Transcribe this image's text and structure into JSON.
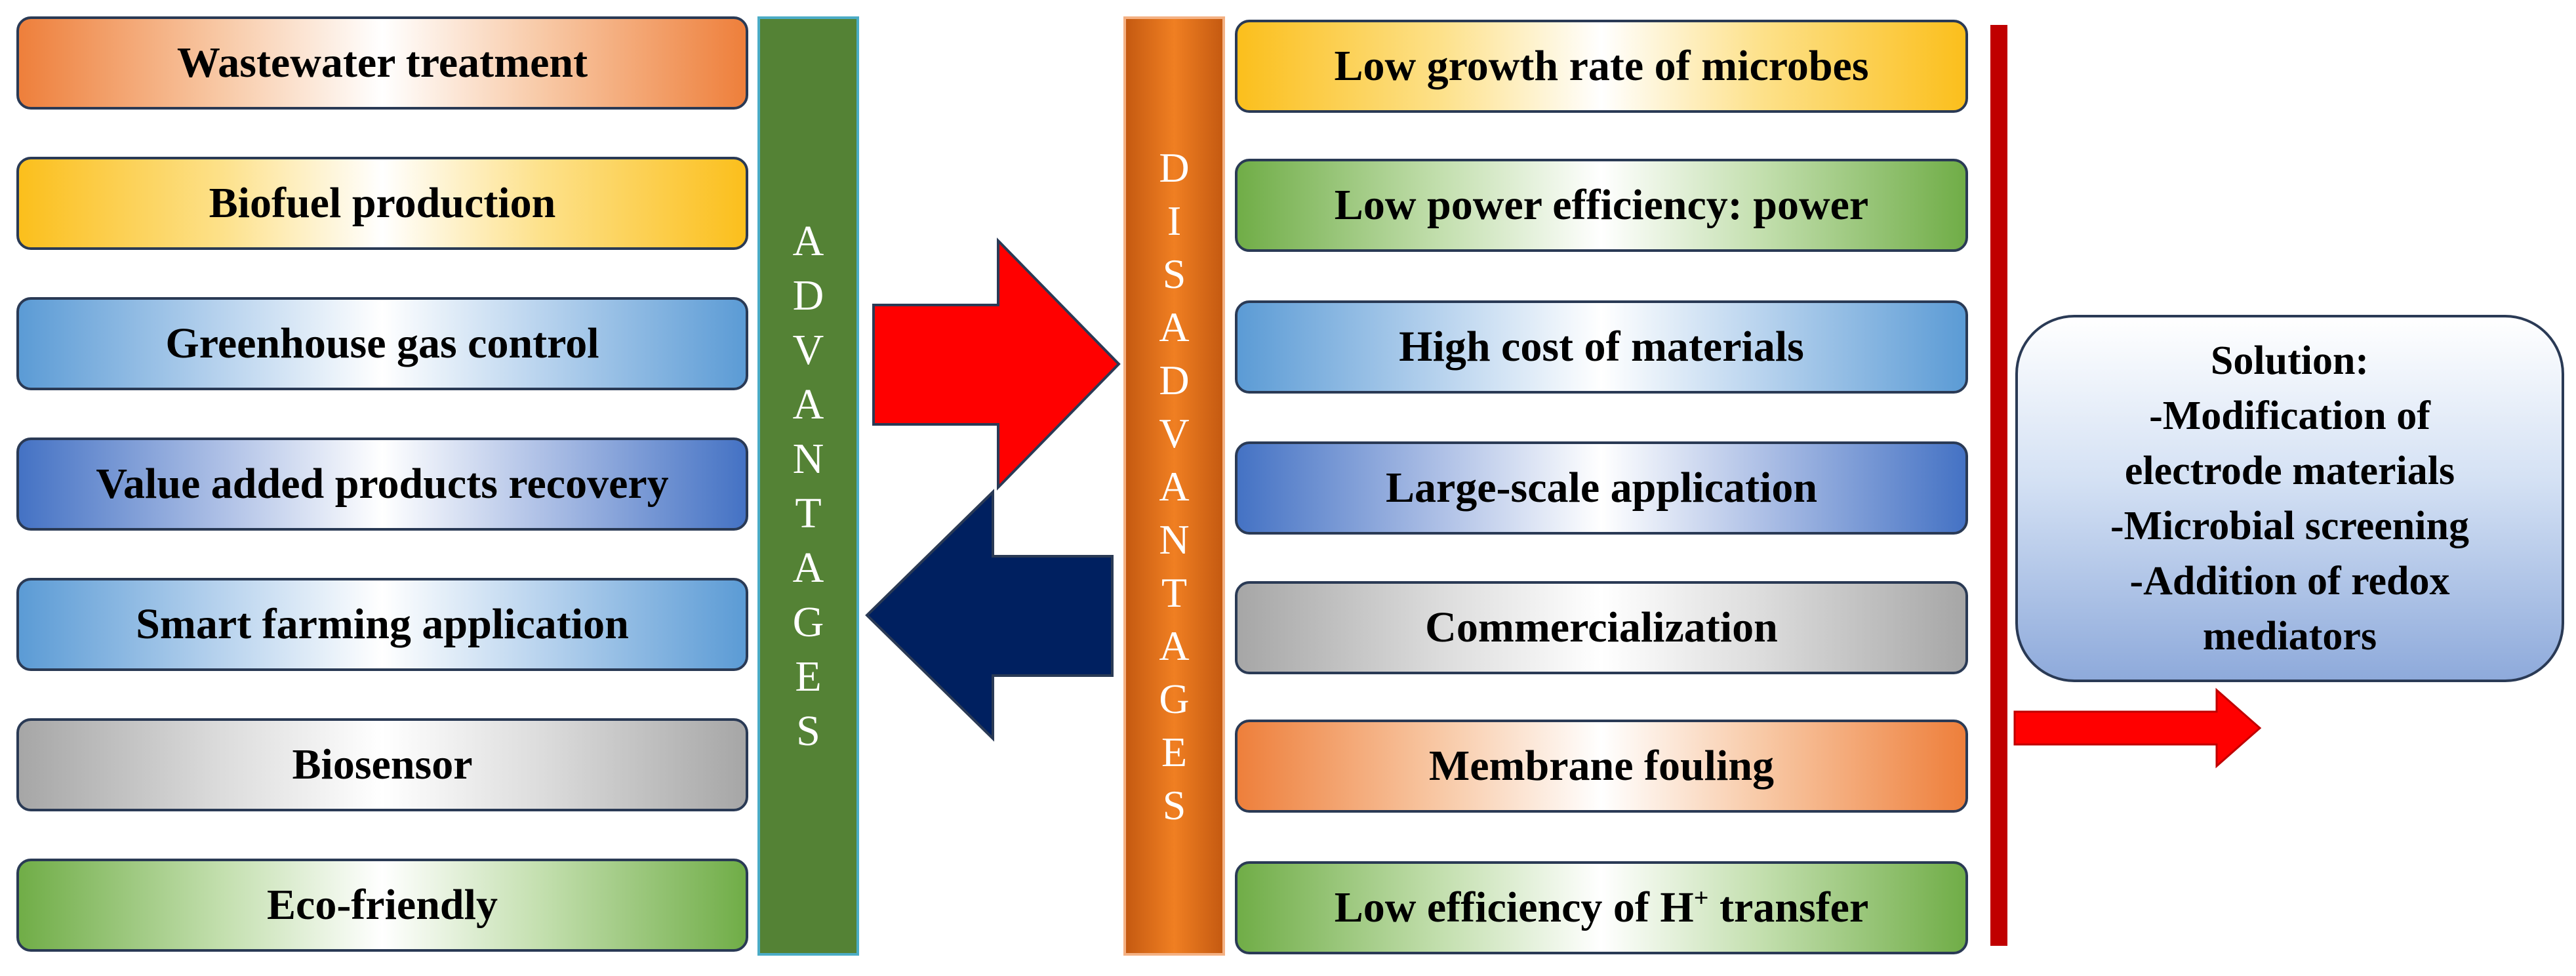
{
  "advantages": {
    "bar_letters": [
      "A",
      "D",
      "V",
      "A",
      "N",
      "T",
      "A",
      "G",
      "E",
      "S"
    ],
    "items": [
      {
        "label": "Wastewater treatment",
        "color": "#ee7f3b"
      },
      {
        "label": "Biofuel production",
        "color": "#fbbf1c"
      },
      {
        "label": "Greenhouse gas control",
        "color": "#5b9bd5"
      },
      {
        "label": "Value added products recovery",
        "color": "#4472c4"
      },
      {
        "label": "Smart farming application",
        "color": "#5b9bd5"
      },
      {
        "label": "Biosensor",
        "color": "#a6a6a6"
      },
      {
        "label": "Eco-friendly",
        "color": "#70ad47"
      }
    ]
  },
  "disadvantages": {
    "bar_letters": [
      "D",
      "I",
      "S",
      "A",
      "D",
      "V",
      "A",
      "N",
      "T",
      "A",
      "G",
      "E",
      "S"
    ],
    "items": [
      {
        "label": "Low growth rate of microbes",
        "color": "#fbbf1c"
      },
      {
        "label": "Low power efficiency: power",
        "color": "#70ad47"
      },
      {
        "label": "High cost of materials",
        "color": "#5b9bd5"
      },
      {
        "label": "Large-scale application",
        "color": "#4472c4"
      },
      {
        "label": "Commercialization",
        "color": "#a6a6a6"
      },
      {
        "label": "Membrane fouling",
        "color": "#ee7f3b"
      },
      {
        "label_prefix": "Low efficiency of H",
        "label_sup": "+",
        "label_suffix": " transfer",
        "color": "#70ad47"
      }
    ]
  },
  "solution": {
    "lines": [
      "Solution:",
      "-Modification of",
      "electrode materials",
      "-Microbial screening",
      "-Addition of redox",
      "mediators"
    ]
  },
  "colors": {
    "advantages_bar": "#548235",
    "disadvantages_bar": "#e36c0a",
    "arrow_right": "#ff0000",
    "arrow_left": "#002060",
    "divider": "#c00000",
    "solution_arrow": "#ff0000"
  }
}
